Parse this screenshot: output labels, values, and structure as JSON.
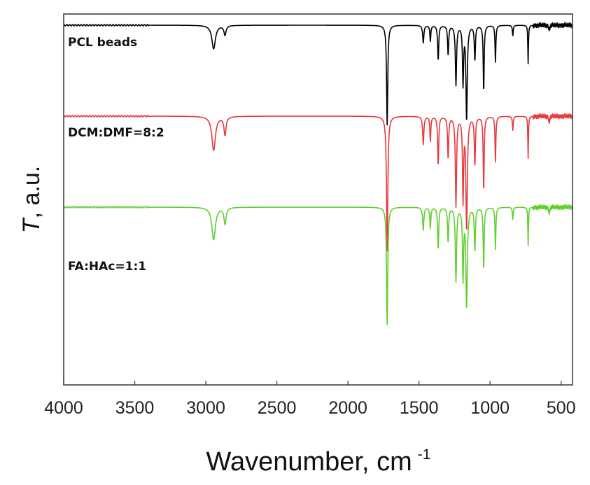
{
  "chart_data": {
    "type": "line",
    "title": "",
    "xlabel": "Wavenumber, cm",
    "xlabel_superscript": "-1",
    "ylabel_italic": "T",
    "ylabel_rest": ", a.u.",
    "xlim": [
      4000,
      420
    ],
    "x_reversed": true,
    "x_ticks": [
      4000,
      3500,
      3000,
      2500,
      2000,
      1500,
      1000,
      500
    ],
    "y_ticks_shown": false,
    "grid": false,
    "legend": "none",
    "series": [
      {
        "name": "PCL beads",
        "color": "#000000",
        "baseline": 1.0,
        "dips": [
          [
            2945,
            0.135,
            30
          ],
          [
            2865,
            0.055,
            18
          ],
          [
            1724,
            0.57,
            10
          ],
          [
            1470,
            0.1,
            10
          ],
          [
            1420,
            0.09,
            8
          ],
          [
            1365,
            0.2,
            9
          ],
          [
            1295,
            0.17,
            9
          ],
          [
            1240,
            0.34,
            10
          ],
          [
            1190,
            0.33,
            9
          ],
          [
            1165,
            0.54,
            11
          ],
          [
            1107,
            0.2,
            9
          ],
          [
            1045,
            0.38,
            8
          ],
          [
            962,
            0.21,
            7
          ],
          [
            840,
            0.06,
            7
          ],
          [
            732,
            0.22,
            5
          ],
          [
            584,
            0.04,
            6
          ]
        ]
      },
      {
        "name": "DCM:DMF=8:2",
        "color": "#e8383d",
        "baseline": 0.0,
        "dips": [
          [
            2945,
            0.195,
            30
          ],
          [
            2865,
            0.105,
            18
          ],
          [
            1724,
            0.77,
            11
          ],
          [
            1470,
            0.16,
            10
          ],
          [
            1420,
            0.14,
            8
          ],
          [
            1365,
            0.28,
            9
          ],
          [
            1295,
            0.24,
            9
          ],
          [
            1240,
            0.51,
            10
          ],
          [
            1190,
            0.47,
            9
          ],
          [
            1165,
            0.64,
            12
          ],
          [
            1107,
            0.28,
            9
          ],
          [
            1045,
            0.43,
            8
          ],
          [
            962,
            0.26,
            7
          ],
          [
            840,
            0.08,
            7
          ],
          [
            732,
            0.24,
            5
          ],
          [
            584,
            0.05,
            6
          ]
        ]
      },
      {
        "name": "FA:HAc=1:1",
        "color": "#5fcf2c",
        "baseline": -1.0,
        "dips": [
          [
            2945,
            0.185,
            30
          ],
          [
            2865,
            0.095,
            18
          ],
          [
            1724,
            0.67,
            10
          ],
          [
            1470,
            0.13,
            10
          ],
          [
            1420,
            0.12,
            8
          ],
          [
            1365,
            0.24,
            9
          ],
          [
            1295,
            0.2,
            9
          ],
          [
            1240,
            0.42,
            10
          ],
          [
            1190,
            0.4,
            9
          ],
          [
            1165,
            0.57,
            12
          ],
          [
            1107,
            0.25,
            9
          ],
          [
            1045,
            0.36,
            8
          ],
          [
            962,
            0.24,
            7
          ],
          [
            840,
            0.07,
            7
          ],
          [
            732,
            0.22,
            5
          ],
          [
            584,
            0.05,
            6
          ]
        ]
      }
    ]
  }
}
